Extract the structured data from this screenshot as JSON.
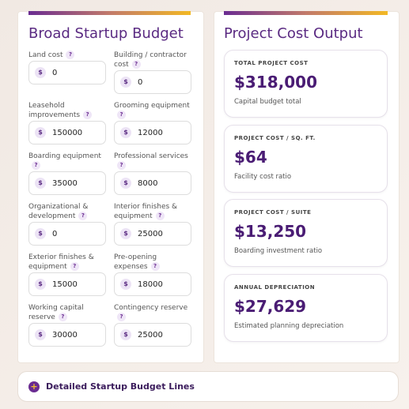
{
  "currency_symbol": "$",
  "help_symbol": "?",
  "budget": {
    "title": "Broad Startup Budget",
    "fields": [
      {
        "label": "Land cost",
        "value": "0"
      },
      {
        "label": "Building / contractor cost",
        "value": "0"
      },
      {
        "label": "Leasehold improvements",
        "value": "150000"
      },
      {
        "label": "Grooming equipment",
        "value": "12000"
      },
      {
        "label": "Boarding equipment",
        "value": "35000"
      },
      {
        "label": "Professional services",
        "value": "8000"
      },
      {
        "label": "Organizational & development",
        "value": "0"
      },
      {
        "label": "Interior finishes & equipment",
        "value": "25000"
      },
      {
        "label": "Exterior finishes & equipment",
        "value": "15000"
      },
      {
        "label": "Pre-opening expenses",
        "value": "18000"
      },
      {
        "label": "Working capital reserve",
        "value": "30000"
      },
      {
        "label": "Contingency reserve",
        "value": "25000"
      }
    ]
  },
  "output": {
    "title": "Project Cost Output",
    "cards": [
      {
        "label": "TOTAL PROJECT COST",
        "value": "$318,000",
        "caption": "Capital budget total"
      },
      {
        "label": "PROJECT COST / SQ. FT.",
        "value": "$64",
        "caption": "Facility cost ratio"
      },
      {
        "label": "PROJECT COST / SUITE",
        "value": "$13,250",
        "caption": "Boarding investment ratio"
      },
      {
        "label": "ANNUAL DEPRECIATION",
        "value": "$27,629",
        "caption": "Estimated planning depreciation"
      }
    ]
  },
  "details_button": {
    "icon": "+",
    "label": "Detailed Startup Budget Lines"
  }
}
